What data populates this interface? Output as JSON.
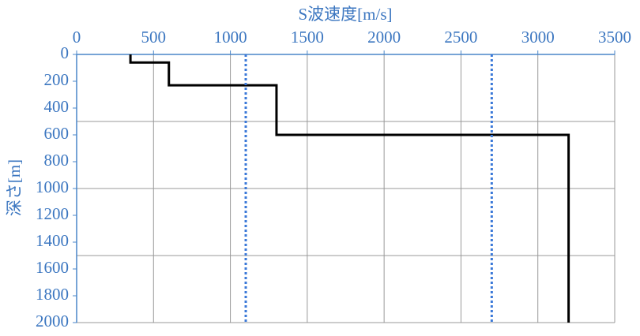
{
  "chart_data": {
    "type": "line",
    "title": "S波速度[m/s]",
    "y_label": "深さ[m]",
    "xlim": [
      0,
      3500
    ],
    "xticks": [
      0,
      500,
      1000,
      1500,
      2000,
      2500,
      3000,
      3500
    ],
    "ylim": [
      0,
      2000
    ],
    "yticks": [
      0,
      200,
      400,
      600,
      800,
      1000,
      1200,
      1400,
      1600,
      1800,
      2000
    ],
    "y_reversed": true,
    "x_grid": true,
    "y_grid": [
      500,
      1000,
      1500,
      2000
    ],
    "series": [
      {
        "color": "#000000",
        "style": "solid",
        "x": [
          350,
          350,
          600,
          600,
          1300,
          1300,
          3200,
          3200
        ],
        "values": [
          0,
          60,
          60,
          230,
          230,
          600,
          600,
          2000
        ]
      },
      {
        "color": "#3a78d8",
        "style": "dotted",
        "x": [
          1100,
          1100
        ],
        "values": [
          0,
          2000
        ]
      },
      {
        "color": "#3a78d8",
        "style": "dotted",
        "x": [
          2700,
          2700
        ],
        "values": [
          0,
          2000
        ]
      }
    ]
  }
}
